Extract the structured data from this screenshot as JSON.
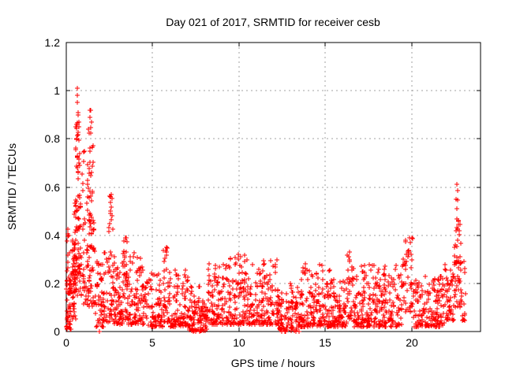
{
  "chart_data": {
    "type": "scatter",
    "title": "Day 021 of 2017, SRMTID for receiver cesb",
    "xlabel": "GPS time / hours",
    "ylabel": "SRMTID / TECUs",
    "xlim": [
      0,
      24
    ],
    "ylim": [
      0,
      1.2
    ],
    "xticks": [
      0,
      5,
      10,
      15,
      20
    ],
    "xtick_labels": [
      "0",
      "5",
      "10",
      "15",
      "20"
    ],
    "yticks": [
      0,
      0.2,
      0.4,
      0.6,
      0.8,
      1,
      1.2
    ],
    "ytick_labels": [
      "0",
      "0.2",
      "0.4",
      "0.6",
      "0.8",
      "1",
      "1.2"
    ],
    "grid": true,
    "grid_color": "#a0a0a0",
    "marker": {
      "shape": "plus",
      "color": "#ff0000",
      "size": 7
    },
    "seed": 20170121,
    "density_bands": [
      {
        "h0": 0.0,
        "h1": 0.3,
        "n": 55,
        "v0": 0.01,
        "v1": 0.27,
        "k": 1.6
      },
      {
        "h0": 0.02,
        "h1": 0.25,
        "n": 8,
        "v0": 0.27,
        "v1": 0.43,
        "k": 1.0
      },
      {
        "h0": 0.3,
        "h1": 0.55,
        "n": 45,
        "v0": 0.05,
        "v1": 0.38,
        "k": 1.5
      },
      {
        "h0": 0.45,
        "h1": 0.85,
        "n": 70,
        "v0": 0.15,
        "v1": 0.55,
        "k": 1.2
      },
      {
        "h0": 0.52,
        "h1": 0.8,
        "n": 28,
        "v0": 0.55,
        "v1": 0.88,
        "k": 1.0
      },
      {
        "h0": 0.85,
        "h1": 1.2,
        "n": 22,
        "v0": 0.1,
        "v1": 0.5,
        "k": 1.3
      },
      {
        "h0": 0.9,
        "h1": 1.15,
        "n": 6,
        "v0": 0.55,
        "v1": 0.78,
        "k": 1.0
      },
      {
        "h0": 1.15,
        "h1": 1.65,
        "n": 70,
        "v0": 0.1,
        "v1": 0.55,
        "k": 1.3
      },
      {
        "h0": 1.2,
        "h1": 1.6,
        "n": 24,
        "v0": 0.55,
        "v1": 0.85,
        "k": 1.0
      },
      {
        "h0": 1.65,
        "h1": 2.15,
        "n": 45,
        "v0": 0.02,
        "v1": 0.3,
        "k": 1.6
      },
      {
        "h0": 2.15,
        "h1": 2.8,
        "n": 60,
        "v0": 0.04,
        "v1": 0.35,
        "k": 1.6
      },
      {
        "h0": 2.45,
        "h1": 2.7,
        "n": 12,
        "v0": 0.35,
        "v1": 0.57,
        "k": 1.0
      },
      {
        "h0": 2.8,
        "h1": 3.25,
        "n": 55,
        "v0": 0.03,
        "v1": 0.27,
        "k": 1.7
      },
      {
        "h0": 3.25,
        "h1": 3.6,
        "n": 45,
        "v0": 0.05,
        "v1": 0.41,
        "k": 1.6
      },
      {
        "h0": 3.6,
        "h1": 4.6,
        "n": 95,
        "v0": 0.03,
        "v1": 0.33,
        "k": 1.9
      },
      {
        "h0": 4.6,
        "h1": 5.6,
        "n": 85,
        "v0": 0.02,
        "v1": 0.25,
        "k": 1.9
      },
      {
        "h0": 5.6,
        "h1": 6.0,
        "n": 40,
        "v0": 0.04,
        "v1": 0.35,
        "k": 1.6
      },
      {
        "h0": 6.0,
        "h1": 7.1,
        "n": 95,
        "v0": 0.02,
        "v1": 0.26,
        "k": 2.0
      },
      {
        "h0": 7.1,
        "h1": 8.2,
        "n": 100,
        "v0": 0.0,
        "v1": 0.14,
        "k": 1.8
      },
      {
        "h0": 7.2,
        "h1": 8.0,
        "n": 10,
        "v0": 0.1,
        "v1": 0.22,
        "k": 1.3
      },
      {
        "h0": 8.2,
        "h1": 9.4,
        "n": 105,
        "v0": 0.03,
        "v1": 0.28,
        "k": 1.9
      },
      {
        "h0": 9.4,
        "h1": 10.4,
        "n": 100,
        "v0": 0.03,
        "v1": 0.32,
        "k": 2.0
      },
      {
        "h0": 10.4,
        "h1": 12.3,
        "n": 170,
        "v0": 0.03,
        "v1": 0.3,
        "k": 2.0
      },
      {
        "h0": 12.3,
        "h1": 13.6,
        "n": 110,
        "v0": 0.0,
        "v1": 0.2,
        "k": 1.8
      },
      {
        "h0": 13.6,
        "h1": 15.3,
        "n": 150,
        "v0": 0.02,
        "v1": 0.28,
        "k": 1.9
      },
      {
        "h0": 15.3,
        "h1": 16.25,
        "n": 85,
        "v0": 0.02,
        "v1": 0.22,
        "k": 1.8
      },
      {
        "h0": 16.25,
        "h1": 16.6,
        "n": 30,
        "v0": 0.05,
        "v1": 0.35,
        "k": 1.5
      },
      {
        "h0": 16.6,
        "h1": 19.5,
        "n": 260,
        "v0": 0.02,
        "v1": 0.28,
        "k": 2.0
      },
      {
        "h0": 19.5,
        "h1": 20.05,
        "n": 45,
        "v0": 0.08,
        "v1": 0.39,
        "k": 1.3
      },
      {
        "h0": 20.05,
        "h1": 21.9,
        "n": 160,
        "v0": 0.02,
        "v1": 0.24,
        "k": 1.9
      },
      {
        "h0": 21.9,
        "h1": 22.45,
        "n": 50,
        "v0": 0.04,
        "v1": 0.28,
        "k": 1.6
      },
      {
        "h0": 22.45,
        "h1": 22.9,
        "n": 45,
        "v0": 0.1,
        "v1": 0.38,
        "k": 1.3
      },
      {
        "h0": 22.55,
        "h1": 22.85,
        "n": 14,
        "v0": 0.35,
        "v1": 0.5,
        "k": 1.0
      },
      {
        "h0": 22.9,
        "h1": 23.15,
        "n": 14,
        "v0": 0.04,
        "v1": 0.3,
        "k": 1.5
      }
    ],
    "peak_points": [
      [
        0.63,
        1.01
      ],
      [
        0.65,
        0.98
      ],
      [
        0.64,
        0.95
      ],
      [
        0.67,
        0.91
      ],
      [
        0.7,
        0.9
      ],
      [
        0.66,
        0.86
      ],
      [
        0.72,
        0.85
      ],
      [
        1.38,
        0.92
      ],
      [
        1.42,
        0.92
      ],
      [
        1.35,
        0.89
      ],
      [
        1.45,
        0.87
      ],
      [
        1.3,
        0.84
      ],
      [
        1.9,
        0.0
      ],
      [
        1.94,
        0.0
      ],
      [
        2.58,
        0.56
      ],
      [
        2.55,
        0.5
      ],
      [
        5.8,
        0.35
      ],
      [
        10.1,
        0.31
      ],
      [
        13.85,
        0.28
      ],
      [
        16.4,
        0.33
      ],
      [
        19.9,
        0.39
      ],
      [
        19.92,
        0.37
      ],
      [
        22.62,
        0.61
      ],
      [
        22.66,
        0.585
      ],
      [
        22.6,
        0.55
      ],
      [
        22.68,
        0.545
      ],
      [
        22.64,
        0.51
      ]
    ]
  }
}
